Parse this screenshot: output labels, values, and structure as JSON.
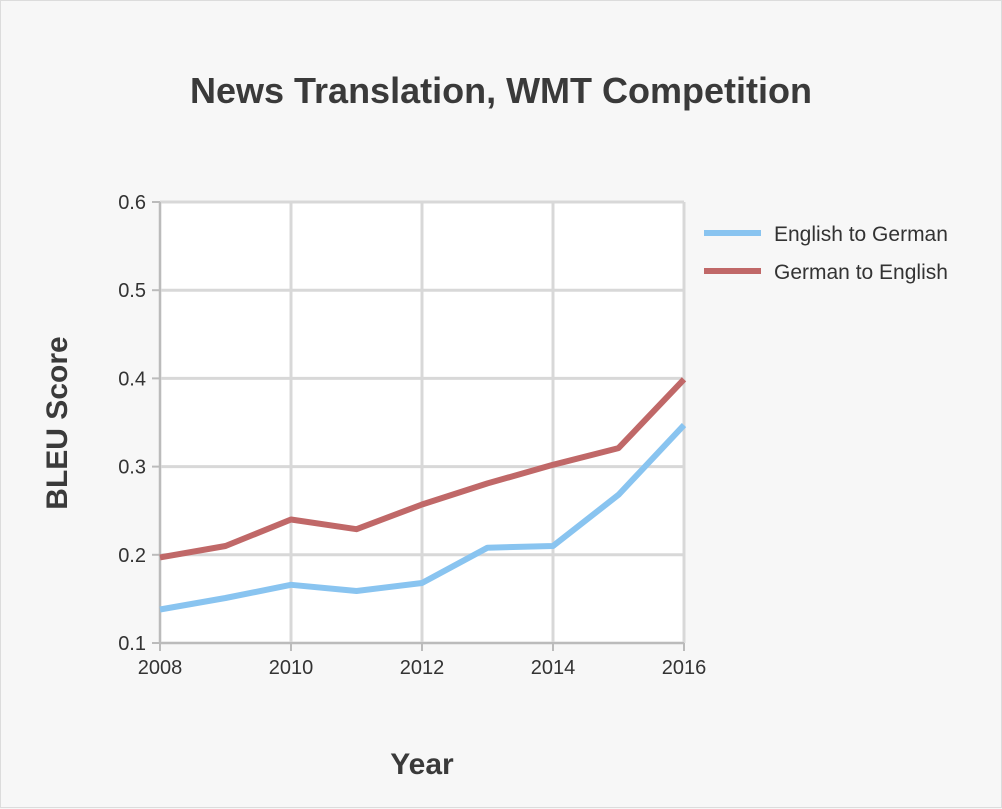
{
  "chart_data": {
    "type": "line",
    "title": "News Translation, WMT Competition",
    "xlabel": "Year",
    "ylabel": "BLEU Score",
    "x": [
      2008,
      2009,
      2010,
      2011,
      2012,
      2013,
      2014,
      2015,
      2016
    ],
    "xticks": [
      "2008",
      "2010",
      "2012",
      "2014",
      "2016"
    ],
    "yticks": [
      "0.1",
      "0.2",
      "0.3",
      "0.4",
      "0.5",
      "0.6"
    ],
    "xlim": [
      2008,
      2016
    ],
    "ylim": [
      0.1,
      0.6
    ],
    "grid": true,
    "legend_position": "right",
    "series": [
      {
        "name": "English to German",
        "color": "#89c4f0",
        "values": [
          0.138,
          0.151,
          0.166,
          0.159,
          0.168,
          0.208,
          0.21,
          0.268,
          0.347
        ]
      },
      {
        "name": "German to English",
        "color": "#c06868",
        "values": [
          0.197,
          0.21,
          0.24,
          0.229,
          0.257,
          0.281,
          0.302,
          0.321,
          0.399
        ]
      }
    ]
  }
}
